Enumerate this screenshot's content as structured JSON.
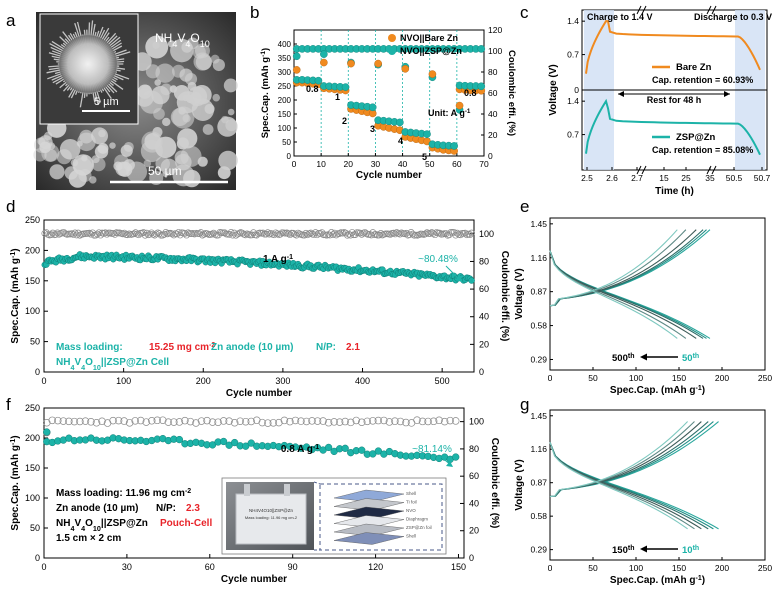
{
  "colors": {
    "teal": "#1cb3a8",
    "orange": "#f08a1f",
    "red": "#e8242a",
    "gray": "#808080",
    "dark_teal": "#157a73"
  },
  "panel_letters": [
    "a",
    "b",
    "c",
    "d",
    "e",
    "f",
    "g"
  ],
  "sem_image": {
    "material": "NH4V4O10",
    "scale_small": "5 µm",
    "scale_large": "50 µm"
  },
  "pouch_photo": {
    "photo_label": "NH4V4O10||ZSP@Zn",
    "photo_label2": "Mass loading: 11.96 mg cm-2",
    "layers": [
      "Shell",
      "Ti foil",
      "NVO",
      "Diaphragm",
      "ZSP@Zn foil",
      "Shell"
    ]
  },
  "chart_data": [
    {
      "panel": "b",
      "type": "scatter",
      "xlabel": "Cycle number",
      "ylabel": "Spec.Cap. (mAh g-1)",
      "y2label": "Coulombic effi. (%)",
      "xlim": [
        0,
        70
      ],
      "ylim": [
        0,
        450
      ],
      "y2lim": [
        0,
        120
      ],
      "xticks": [
        "0",
        "10",
        "20",
        "30",
        "40",
        "50",
        "60",
        "70"
      ],
      "yticks": [
        "0",
        "50",
        "100",
        "150",
        "200",
        "250",
        "300",
        "350",
        "400"
      ],
      "y2ticks": [
        "0",
        "20",
        "40",
        "60",
        "80",
        "100",
        "120"
      ],
      "rate_labels": [
        "0.8",
        "1",
        "2",
        "3",
        "4",
        "5",
        "0.8"
      ],
      "unit_note": "Unit: A g-1",
      "legend": [
        "NVO||Bare Zn",
        "NVO||ZSP@Zn"
      ],
      "series": [
        {
          "name": "NVO||Bare Zn",
          "capacity": [
            [
              1,
              262
            ],
            [
              3,
              262
            ],
            [
              5,
              260
            ],
            [
              7,
              258
            ],
            [
              9,
              256
            ],
            [
              11,
              242
            ],
            [
              13,
              240
            ],
            [
              15,
              238
            ],
            [
              17,
              236
            ],
            [
              19,
              234
            ],
            [
              21,
              168
            ],
            [
              23,
              164
            ],
            [
              25,
              160
            ],
            [
              27,
              156
            ],
            [
              29,
              152
            ],
            [
              31,
              108
            ],
            [
              33,
              104
            ],
            [
              35,
              100
            ],
            [
              37,
              96
            ],
            [
              39,
              92
            ],
            [
              41,
              68
            ],
            [
              43,
              64
            ],
            [
              45,
              60
            ],
            [
              47,
              56
            ],
            [
              49,
              52
            ],
            [
              51,
              30
            ],
            [
              53,
              26
            ],
            [
              55,
              22
            ],
            [
              57,
              20
            ],
            [
              59,
              18
            ],
            [
              61,
              238
            ],
            [
              63,
              236
            ],
            [
              65,
              235
            ],
            [
              67,
              234
            ],
            [
              69,
              233
            ]
          ],
          "ce_outliers": [
            [
              1,
              82
            ],
            [
              11,
              89
            ],
            [
              21,
              88
            ],
            [
              31,
              88
            ],
            [
              41,
              83
            ],
            [
              51,
              78
            ],
            [
              61,
              48
            ]
          ]
        },
        {
          "name": "NVO||ZSP@Zn",
          "capacity": [
            [
              1,
              272
            ],
            [
              3,
              272
            ],
            [
              5,
              271
            ],
            [
              7,
              270
            ],
            [
              9,
              269
            ],
            [
              11,
              250
            ],
            [
              13,
              249
            ],
            [
              15,
              248
            ],
            [
              17,
              247
            ],
            [
              19,
              246
            ],
            [
              21,
              182
            ],
            [
              23,
              180
            ],
            [
              25,
              178
            ],
            [
              27,
              176
            ],
            [
              29,
              174
            ],
            [
              31,
              128
            ],
            [
              33,
              126
            ],
            [
              35,
              124
            ],
            [
              37,
              122
            ],
            [
              39,
              120
            ],
            [
              41,
              86
            ],
            [
              43,
              84
            ],
            [
              45,
              82
            ],
            [
              47,
              80
            ],
            [
              49,
              78
            ],
            [
              51,
              42
            ],
            [
              53,
              40
            ],
            [
              55,
              38
            ],
            [
              57,
              37
            ],
            [
              59,
              36
            ],
            [
              61,
              252
            ],
            [
              63,
              251
            ],
            [
              65,
              250
            ],
            [
              67,
              250
            ],
            [
              69,
              249
            ]
          ],
          "ce": 102,
          "ce_outliers": [
            [
              1,
              95
            ],
            [
              11,
              97
            ],
            [
              21,
              89
            ],
            [
              31,
              87
            ],
            [
              41,
              85
            ],
            [
              51,
              75
            ],
            [
              61,
              44
            ]
          ]
        }
      ]
    },
    {
      "panel": "c",
      "type": "line",
      "xlabel": "Time (h)",
      "ylabel": "Voltage (V)",
      "xticks": [
        "2.5",
        "2.6",
        "2.7",
        "15",
        "25",
        "35",
        "50.5",
        "50.7"
      ],
      "yticks_top": [
        "0.7",
        "1.4"
      ],
      "yticks_bottom": [
        "0.7",
        "1.4"
      ],
      "y_zero": "0",
      "annotations": [
        "Charge to 1.4 V",
        "Discharge to 0.3 V",
        "Rest for 48 h"
      ],
      "series": [
        {
          "name": "Bare Zn",
          "note": "Cap. retention = 60.93%"
        },
        {
          "name": "ZSP@Zn",
          "note": "Cap. retention = 85.08%"
        }
      ]
    },
    {
      "panel": "d",
      "type": "scatter",
      "xlabel": "Cycle number",
      "ylabel": "Spec.Cap. (mAh g-1)",
      "y2label": "Coulombic effi. (%)",
      "xlim": [
        0,
        540
      ],
      "ylim": [
        0,
        250
      ],
      "y2lim": [
        0,
        110
      ],
      "xticks": [
        "0",
        "100",
        "200",
        "300",
        "400",
        "500"
      ],
      "yticks": [
        "0",
        "50",
        "100",
        "150",
        "200",
        "250"
      ],
      "y2ticks": [
        "0",
        "20",
        "40",
        "60",
        "80",
        "100"
      ],
      "rate": "1 A g-1",
      "retention": "~80.48%",
      "info_lines": [
        "Mass loading: ",
        "15.25 mg cm-2",
        "Zn anode (10 µm)",
        "N/P: ",
        "2.1",
        "NH4V4O10||ZSP@Zn Cell"
      ],
      "capacity_start": 180,
      "capacity_peak": 190,
      "capacity_end": 152,
      "ce": 100
    },
    {
      "panel": "e",
      "type": "line",
      "xlabel": "Spec.Cap. (mAh g-1)",
      "ylabel": "Voltage (V)",
      "xlim": [
        0,
        250
      ],
      "ylim": [
        0.2,
        1.5
      ],
      "xticks": [
        "0",
        "50",
        "100",
        "150",
        "200",
        "250"
      ],
      "yticks": [
        "0.29",
        "0.58",
        "0.87",
        "1.16",
        "1.45"
      ],
      "cycle_labels": [
        "500th",
        "50th"
      ],
      "end_capacities": [
        186,
        182,
        178,
        170,
        158,
        148
      ]
    },
    {
      "panel": "f",
      "type": "scatter",
      "xlabel": "Cycle number",
      "ylabel": "Spec.Cap. (mAh g-1)",
      "y2label": "Coulombic effi. (%)",
      "xlim": [
        0,
        152
      ],
      "ylim": [
        0,
        250
      ],
      "y2lim": [
        0,
        110
      ],
      "xticks": [
        "0",
        "30",
        "60",
        "90",
        "120",
        "150"
      ],
      "yticks": [
        "0",
        "50",
        "100",
        "150",
        "200",
        "250"
      ],
      "y2ticks": [
        "0",
        "20",
        "40",
        "60",
        "80",
        "100"
      ],
      "rate": "0.8 A g-1",
      "retention": "~81.14%",
      "info_lines": [
        "Mass loading: 11.96 mg cm-2",
        "Zn anode (10 µm)",
        "N/P: ",
        "2.3",
        "NH4V4O10||ZSP@Zn ",
        "Pouch-Cell",
        "1.5 cm × 2 cm"
      ],
      "capacity_start": 195,
      "capacity_end": 165,
      "ce": 100
    },
    {
      "panel": "g",
      "type": "line",
      "xlabel": "Spec.Cap. (mAh g-1)",
      "ylabel": "Voltage (V)",
      "xlim": [
        0,
        250
      ],
      "ylim": [
        0.2,
        1.5
      ],
      "xticks": [
        "0",
        "50",
        "100",
        "150",
        "200",
        "250"
      ],
      "yticks": [
        "0.29",
        "0.58",
        "0.87",
        "1.16",
        "1.45"
      ],
      "cycle_labels": [
        "150th",
        "10th"
      ],
      "end_capacities": [
        196,
        190,
        184,
        176,
        168,
        160
      ]
    }
  ]
}
